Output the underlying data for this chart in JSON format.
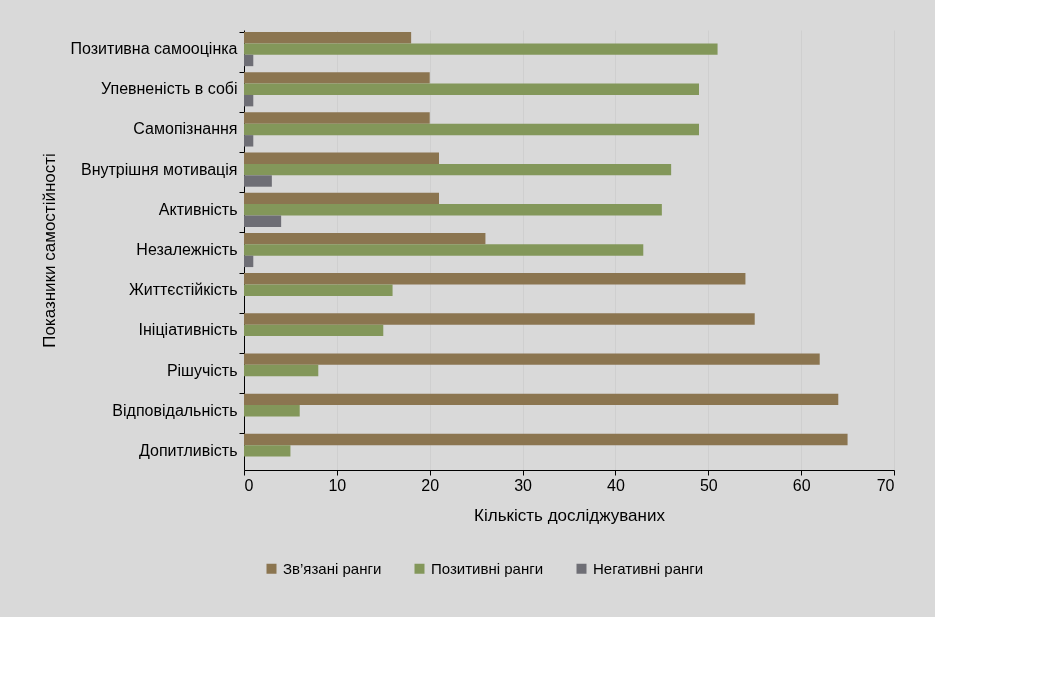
{
  "chart_data": {
    "type": "bar",
    "orientation": "horizontal",
    "xlabel": "Кількість досліджуваних",
    "ylabel": "Показники самостійності",
    "categories": [
      "Позитивна самооцінка",
      "Упевненість в собі",
      "Самопізнання",
      "Внутрішня мотивація",
      "Активність",
      "Незалежність",
      "Життєстійкість",
      "Ініціативність",
      "Рішучість",
      "Відповідальність",
      "Допитливість"
    ],
    "series": [
      {
        "name": "Зв’язані ранги",
        "color": "#8b7550",
        "values": [
          18,
          20,
          20,
          21,
          21,
          26,
          54,
          55,
          62,
          64,
          65
        ]
      },
      {
        "name": "Позитивні ранги",
        "color": "#83975a",
        "values": [
          51,
          49,
          49,
          46,
          45,
          43,
          16,
          15,
          8,
          6,
          5
        ]
      },
      {
        "name": "Негативні ранги",
        "color": "#6e6e75",
        "values": [
          1,
          1,
          1,
          3,
          4,
          1,
          0,
          0,
          0,
          0,
          0
        ]
      }
    ],
    "xlim": [
      0,
      70
    ],
    "xticks": [
      0,
      10,
      20,
      30,
      40,
      50,
      60,
      70
    ],
    "grid": "x",
    "legend": "bottom"
  }
}
